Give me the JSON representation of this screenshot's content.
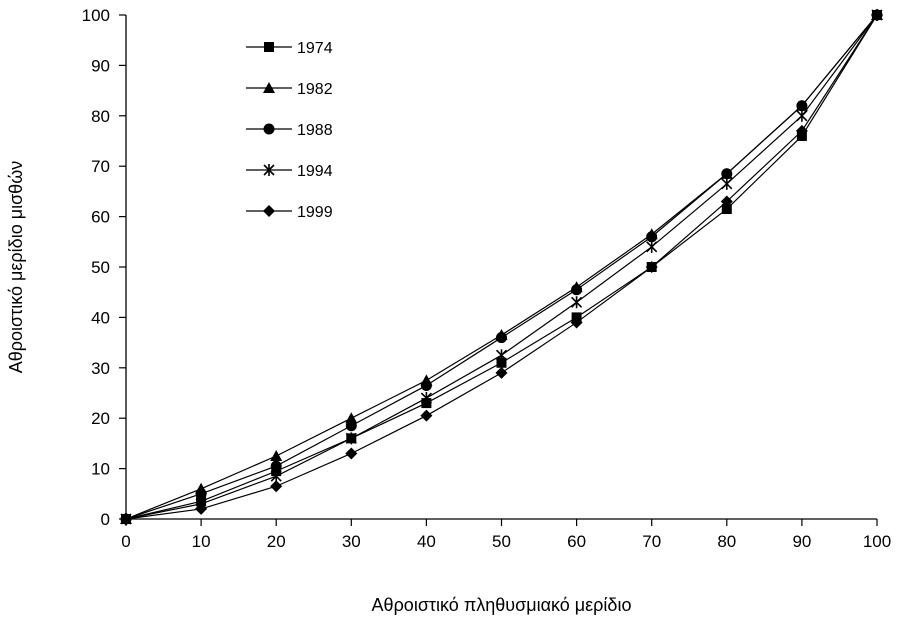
{
  "chart_data": {
    "type": "line",
    "xlabel": "Αθροιστικό πληθυσμιακό μερίδιο",
    "ylabel": "Αθροιστικό μερίδιο μισθών",
    "xlim": [
      0,
      100
    ],
    "ylim": [
      0,
      100
    ],
    "x_ticks": [
      0,
      10,
      20,
      30,
      40,
      50,
      60,
      70,
      80,
      90,
      100
    ],
    "y_ticks": [
      0,
      10,
      20,
      30,
      40,
      50,
      60,
      70,
      80,
      90,
      100
    ],
    "x": [
      0,
      10,
      20,
      30,
      40,
      50,
      60,
      70,
      80,
      90,
      100
    ],
    "grid": false,
    "legend_position": "top-left",
    "series": [
      {
        "name": "1974",
        "marker": "square",
        "values": [
          0,
          3.5,
          9.5,
          16,
          23,
          31,
          40,
          50,
          61.5,
          76,
          100
        ]
      },
      {
        "name": "1982",
        "marker": "triangle",
        "values": [
          0,
          6,
          12.5,
          20,
          27.5,
          36.5,
          46,
          56.5,
          68.5,
          82,
          100
        ]
      },
      {
        "name": "1988",
        "marker": "circle",
        "values": [
          0,
          5,
          10.5,
          18.5,
          26.5,
          36,
          45.5,
          56,
          68.5,
          82,
          100
        ]
      },
      {
        "name": "1994",
        "marker": "asterisk",
        "values": [
          0,
          3,
          8.5,
          16,
          24,
          32.5,
          43,
          54,
          66.5,
          80,
          100
        ]
      },
      {
        "name": "1999",
        "marker": "diamond",
        "values": [
          0,
          2,
          6.5,
          13,
          20.5,
          29,
          39,
          50,
          63,
          77,
          100
        ]
      }
    ]
  }
}
